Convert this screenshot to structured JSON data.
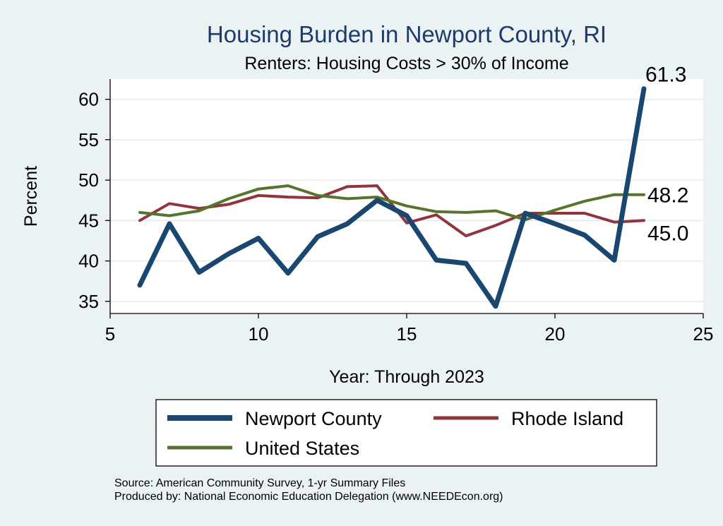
{
  "chart_data": {
    "type": "line",
    "title": "Housing Burden in Newport County, RI",
    "subtitle": "Renters: Housing Costs > 30% of Income",
    "xlabel": "Year: Through 2023",
    "ylabel": "Percent",
    "xlim": [
      5,
      25
    ],
    "ylim": [
      33.5,
      62.5
    ],
    "x_ticks": [
      5,
      10,
      15,
      20,
      25
    ],
    "y_ticks": [
      35,
      40,
      45,
      50,
      55,
      60
    ],
    "grid": true,
    "legend_position": "bottom",
    "x": [
      6,
      7,
      8,
      9,
      10,
      11,
      12,
      13,
      14,
      15,
      16,
      17,
      18,
      19,
      20,
      21,
      22,
      23
    ],
    "series": [
      {
        "name": "Newport County",
        "color": "#1a476f",
        "values": [
          37.0,
          44.6,
          38.6,
          40.9,
          42.8,
          38.5,
          43.0,
          44.6,
          47.5,
          45.6,
          40.1,
          39.7,
          34.4,
          45.9,
          44.6,
          43.2,
          40.1,
          61.3
        ],
        "end_label": "61.3"
      },
      {
        "name": "Rhode Island",
        "color": "#90353b",
        "values": [
          45.0,
          47.1,
          46.5,
          47.0,
          48.1,
          47.9,
          47.8,
          49.2,
          49.3,
          44.7,
          45.7,
          43.1,
          44.4,
          45.9,
          45.9,
          45.9,
          44.8,
          45.0
        ],
        "end_label": "45.0"
      },
      {
        "name": "United States",
        "color": "#55752f",
        "values": [
          46.0,
          45.6,
          46.2,
          47.7,
          48.9,
          49.3,
          48.1,
          47.7,
          47.9,
          46.8,
          46.1,
          46.0,
          46.2,
          45.1,
          46.3,
          47.4,
          48.2,
          48.2
        ],
        "end_label": "48.2"
      }
    ],
    "notes": [
      "Source: American Community Survey, 1-yr Summary Files",
      "Produced by: National Economic Education Delegation (www.NEEDEcon.org)"
    ]
  }
}
